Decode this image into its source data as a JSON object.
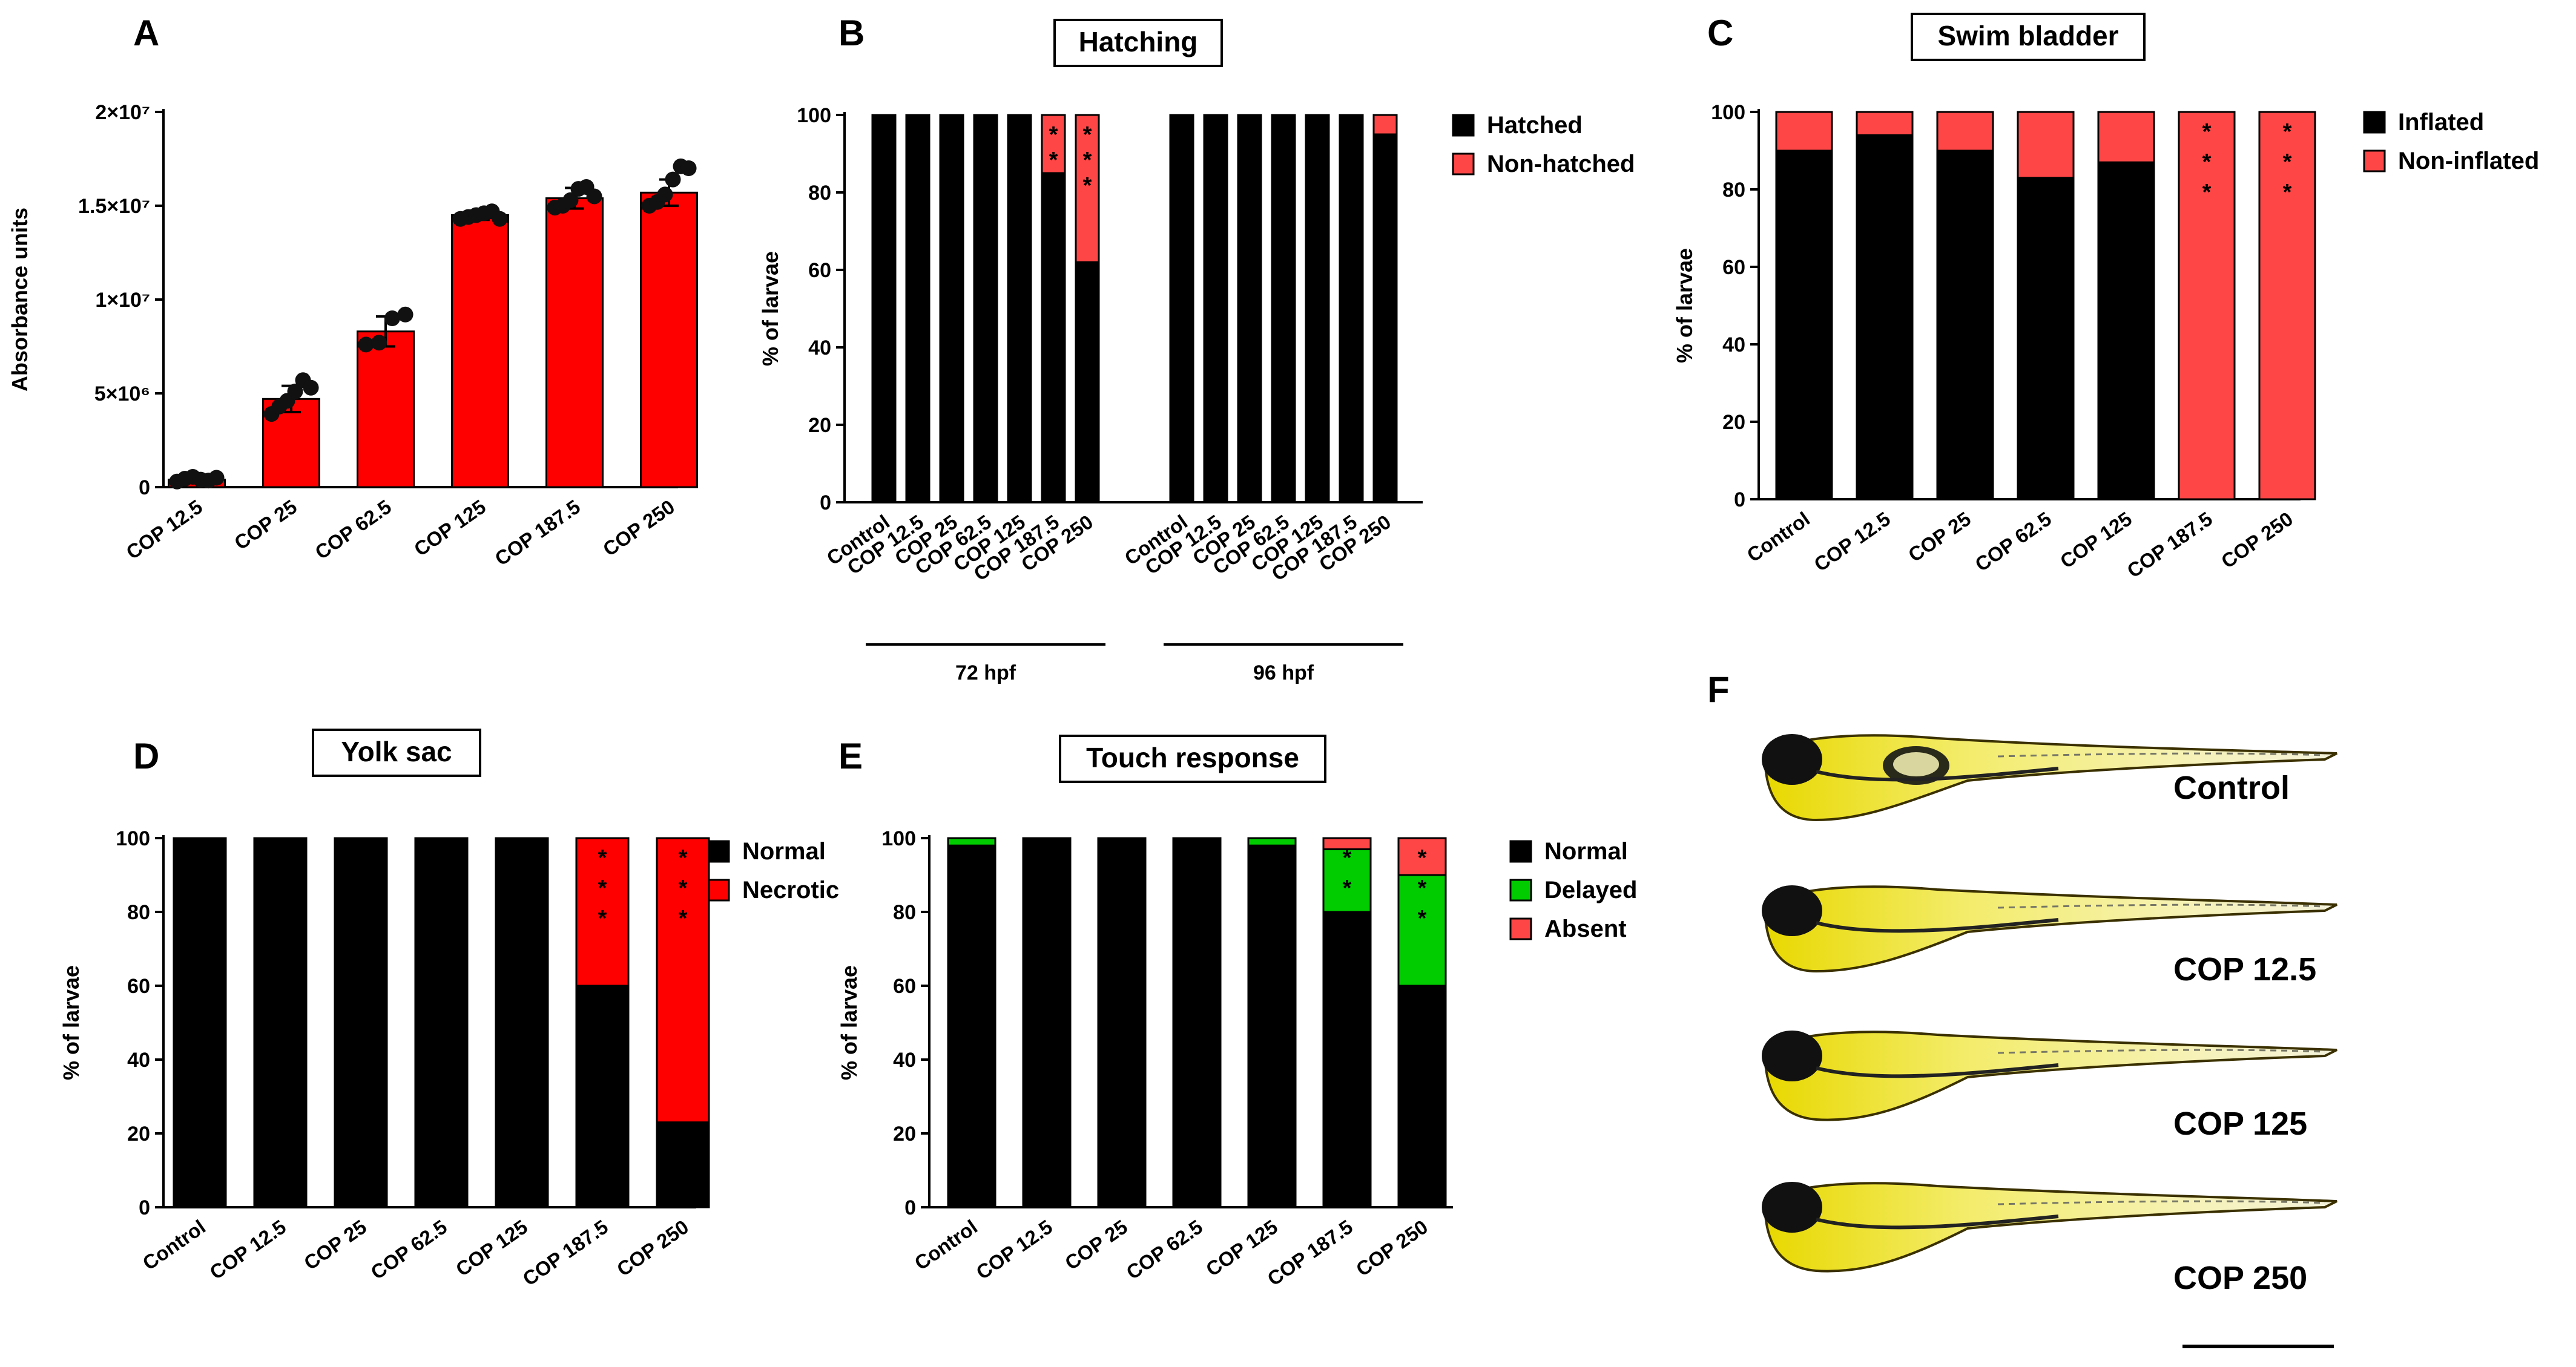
{
  "panels": {
    "A": "A",
    "B": "B",
    "C": "C",
    "D": "D",
    "E": "E",
    "F": "F"
  },
  "colors": {
    "red": "#ff0000",
    "light_red": "#ff4646",
    "green": "#00cc00",
    "black": "#000000"
  },
  "chart_data": [
    {
      "id": "A",
      "type": "bar",
      "title": "",
      "ylabel": "Absorbance units",
      "ylim": [
        0,
        20000000
      ],
      "yticks": [
        {
          "v": 0,
          "label": "0"
        },
        {
          "v": 5000000,
          "label": "5×10⁶"
        },
        {
          "v": 10000000,
          "label": "1×10⁷"
        },
        {
          "v": 15000000,
          "label": "1.5×10⁷"
        },
        {
          "v": 20000000,
          "label": "2×10⁷"
        }
      ],
      "categories": [
        "COP 12.5",
        "COP 25",
        "COP 62.5",
        "COP 125",
        "COP 187.5",
        "COP 250"
      ],
      "values": [
        400000,
        4700000,
        8300000,
        14500000,
        15400000,
        15700000
      ],
      "errors": [
        150000,
        700000,
        800000,
        250000,
        550000,
        700000
      ],
      "points": [
        [
          300000,
          450000,
          550000,
          400000,
          350000,
          500000
        ],
        [
          3900000,
          4300000,
          4600000,
          5100000,
          5700000,
          5300000
        ],
        [
          7600000,
          7700000,
          9000000,
          9200000
        ],
        [
          14300000,
          14400000,
          14500000,
          14600000,
          14700000,
          14300000
        ],
        [
          14900000,
          15000000,
          15300000,
          15900000,
          16000000,
          15500000
        ],
        [
          15000000,
          15200000,
          15600000,
          16400000,
          17100000,
          17000000
        ]
      ]
    },
    {
      "id": "B",
      "type": "stacked_bar",
      "title": "Hatching",
      "ylabel": "% of larvae",
      "ylim": [
        0,
        100
      ],
      "yticks": [
        0,
        20,
        40,
        60,
        80,
        100
      ],
      "categories": [
        "Control",
        "COP 12.5",
        "COP 25",
        "COP 62.5",
        "COP 125",
        "COP 187.5",
        "COP 250",
        "Control",
        "COP 12.5",
        "COP 25",
        "COP 62.5",
        "COP 125",
        "COP 187.5",
        "COP 250"
      ],
      "groups": [
        {
          "label": "72 hpf",
          "from": 0,
          "to": 6
        },
        {
          "label": "96 hpf",
          "from": 7,
          "to": 13
        }
      ],
      "series": [
        {
          "name": "Hatched",
          "color": "#000000",
          "values": [
            100,
            100,
            100,
            100,
            100,
            85,
            62,
            100,
            100,
            100,
            100,
            100,
            100,
            95
          ]
        },
        {
          "name": "Non-hatched",
          "color": "#ff4646",
          "values": [
            0,
            0,
            0,
            0,
            0,
            15,
            38,
            0,
            0,
            0,
            0,
            0,
            0,
            5
          ]
        }
      ],
      "stars": [
        {
          "index": 5,
          "text": "**"
        },
        {
          "index": 6,
          "text": "***"
        }
      ],
      "legend": [
        "Hatched",
        "Non-hatched"
      ]
    },
    {
      "id": "C",
      "type": "stacked_bar",
      "title": "Swim bladder",
      "ylabel": "% of larvae",
      "ylim": [
        0,
        100
      ],
      "yticks": [
        0,
        20,
        40,
        60,
        80,
        100
      ],
      "categories": [
        "Control",
        "COP 12.5",
        "COP 25",
        "COP 62.5",
        "COP 125",
        "COP 187.5",
        "COP 250"
      ],
      "series": [
        {
          "name": "Inflated",
          "color": "#000000",
          "values": [
            90,
            94,
            90,
            83,
            87,
            0,
            0
          ]
        },
        {
          "name": "Non-inflated",
          "color": "#ff4646",
          "values": [
            10,
            6,
            10,
            17,
            13,
            100,
            100
          ]
        }
      ],
      "stars": [
        {
          "index": 5,
          "text": "***"
        },
        {
          "index": 6,
          "text": "***"
        }
      ],
      "legend": [
        "Inflated",
        "Non-inflated"
      ]
    },
    {
      "id": "D",
      "type": "stacked_bar",
      "title": "Yolk sac",
      "ylabel": "% of larvae",
      "ylim": [
        0,
        100
      ],
      "yticks": [
        0,
        20,
        40,
        60,
        80,
        100
      ],
      "categories": [
        "Control",
        "COP 12.5",
        "COP 25",
        "COP 62.5",
        "COP 125",
        "COP 187.5",
        "COP 250"
      ],
      "series": [
        {
          "name": "Normal",
          "color": "#000000",
          "values": [
            100,
            100,
            100,
            100,
            100,
            60,
            23
          ]
        },
        {
          "name": "Necrotic",
          "color": "#ff0000",
          "values": [
            0,
            0,
            0,
            0,
            0,
            40,
            77
          ]
        }
      ],
      "stars": [
        {
          "index": 5,
          "text": "***"
        },
        {
          "index": 6,
          "text": "***"
        }
      ],
      "legend": [
        "Normal",
        "Necrotic"
      ]
    },
    {
      "id": "E",
      "type": "stacked_bar",
      "title": "Touch response",
      "ylabel": "% of larvae",
      "ylim": [
        0,
        100
      ],
      "yticks": [
        0,
        20,
        40,
        60,
        80,
        100
      ],
      "categories": [
        "Control",
        "COP 12.5",
        "COP 25",
        "COP 62.5",
        "COP 125",
        "COP 187.5",
        "COP 250"
      ],
      "series": [
        {
          "name": "Normal",
          "color": "#000000",
          "values": [
            98,
            100,
            100,
            100,
            98,
            80,
            60
          ]
        },
        {
          "name": "Delayed",
          "color": "#00cc00",
          "values": [
            2,
            0,
            0,
            0,
            2,
            17,
            30
          ]
        },
        {
          "name": "Absent",
          "color": "#ff4646",
          "values": [
            0,
            0,
            0,
            0,
            0,
            3,
            10
          ]
        }
      ],
      "stars": [
        {
          "index": 5,
          "text": "**"
        },
        {
          "index": 6,
          "text": "***"
        }
      ],
      "legend": [
        "Normal",
        "Delayed",
        "Absent"
      ]
    }
  ],
  "fish_panel": {
    "labels": [
      "Control",
      "COP 12.5",
      "COP 125",
      "COP 250"
    ]
  }
}
